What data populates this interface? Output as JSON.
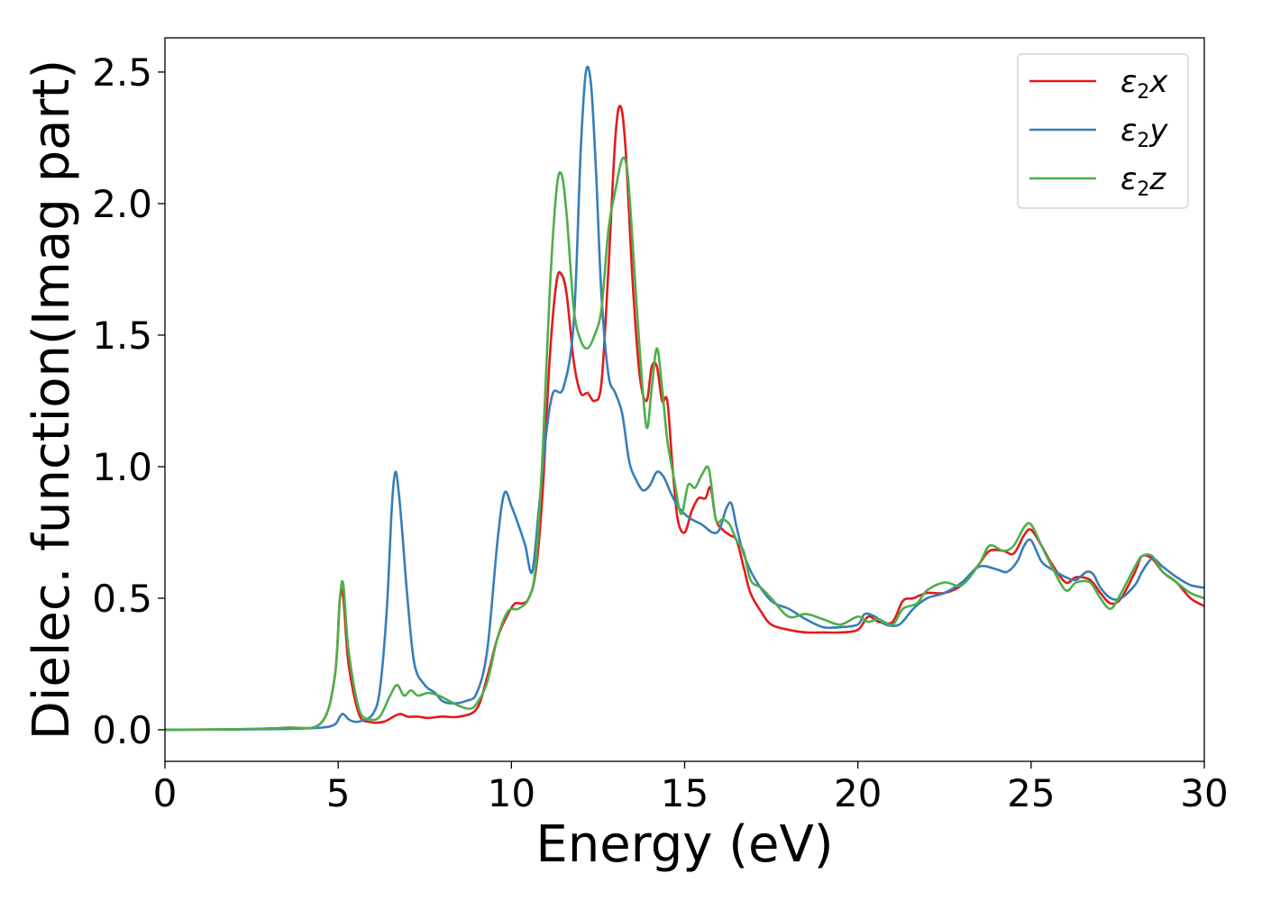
{
  "chart_data": {
    "type": "line",
    "title": "",
    "xlabel": "Energy (eV)",
    "ylabel": "Dielec. function(Imag part)",
    "xlim": [
      0,
      30
    ],
    "ylim": [
      -0.12,
      2.63
    ],
    "xticks": [
      0,
      5,
      10,
      15,
      20,
      25,
      30
    ],
    "xtick_labels": [
      "0",
      "5",
      "10",
      "15",
      "20",
      "25",
      "30"
    ],
    "yticks": [
      0.0,
      0.5,
      1.0,
      1.5,
      2.0,
      2.5
    ],
    "ytick_labels": [
      "0.0",
      "0.5",
      "1.0",
      "1.5",
      "2.0",
      "2.5"
    ],
    "grid": false,
    "legend_position": "top-right",
    "series": [
      {
        "name": "ε2x",
        "legend_main": "ε",
        "legend_sub": "2",
        "legend_suffix": "x",
        "color": "#e41a1c",
        "x": [
          0,
          2,
          3.5,
          4.5,
          4.9,
          5.05,
          5.15,
          5.3,
          5.6,
          5.9,
          6.3,
          6.6,
          6.8,
          7.0,
          7.3,
          7.6,
          8.0,
          8.5,
          9.0,
          9.3,
          9.6,
          9.9,
          10.1,
          10.3,
          10.5,
          10.7,
          10.9,
          11.1,
          11.3,
          11.45,
          11.6,
          11.8,
          12.0,
          12.2,
          12.4,
          12.6,
          12.8,
          13.0,
          13.15,
          13.3,
          13.5,
          13.7,
          13.9,
          14.05,
          14.2,
          14.35,
          14.5,
          14.65,
          14.8,
          15.0,
          15.2,
          15.4,
          15.6,
          15.75,
          15.9,
          16.1,
          16.3,
          16.5,
          16.7,
          16.9,
          17.2,
          17.5,
          18.0,
          18.5,
          19.0,
          19.5,
          20.0,
          20.3,
          20.6,
          21.0,
          21.3,
          21.6,
          22.0,
          22.5,
          23.0,
          23.5,
          23.8,
          24.2,
          24.5,
          24.8,
          25.0,
          25.3,
          25.6,
          26.0,
          26.3,
          26.7,
          27.0,
          27.3,
          27.6,
          28.0,
          28.2,
          28.5,
          28.8,
          29.2,
          29.6,
          30.0
        ],
        "y": [
          0.0,
          0.002,
          0.008,
          0.025,
          0.2,
          0.5,
          0.5,
          0.25,
          0.06,
          0.03,
          0.03,
          0.05,
          0.06,
          0.05,
          0.05,
          0.045,
          0.05,
          0.05,
          0.08,
          0.2,
          0.35,
          0.44,
          0.48,
          0.48,
          0.5,
          0.6,
          0.9,
          1.4,
          1.7,
          1.73,
          1.65,
          1.4,
          1.28,
          1.28,
          1.25,
          1.32,
          1.75,
          2.25,
          2.37,
          2.2,
          1.7,
          1.35,
          1.25,
          1.38,
          1.38,
          1.25,
          1.25,
          1.0,
          0.8,
          0.75,
          0.83,
          0.88,
          0.88,
          0.92,
          0.8,
          0.76,
          0.74,
          0.72,
          0.62,
          0.52,
          0.45,
          0.4,
          0.38,
          0.37,
          0.37,
          0.37,
          0.38,
          0.43,
          0.41,
          0.41,
          0.49,
          0.5,
          0.52,
          0.52,
          0.55,
          0.63,
          0.68,
          0.68,
          0.67,
          0.74,
          0.76,
          0.7,
          0.63,
          0.56,
          0.58,
          0.57,
          0.52,
          0.48,
          0.5,
          0.6,
          0.66,
          0.65,
          0.6,
          0.56,
          0.5,
          0.47
        ]
      },
      {
        "name": "ε2y",
        "legend_main": "ε",
        "legend_sub": "2",
        "legend_suffix": "y",
        "color": "#377eb8",
        "x": [
          0,
          2,
          3.5,
          4.5,
          4.9,
          5.05,
          5.15,
          5.3,
          5.5,
          5.7,
          6.0,
          6.2,
          6.4,
          6.55,
          6.65,
          6.75,
          6.85,
          7.0,
          7.2,
          7.5,
          7.8,
          8.0,
          8.3,
          8.7,
          9.0,
          9.3,
          9.6,
          9.8,
          10.0,
          10.2,
          10.4,
          10.6,
          10.8,
          11.0,
          11.2,
          11.5,
          11.8,
          12.0,
          12.15,
          12.3,
          12.45,
          12.6,
          12.8,
          13.0,
          13.2,
          13.4,
          13.6,
          13.8,
          14.0,
          14.2,
          14.4,
          14.6,
          14.8,
          15.0,
          15.2,
          15.5,
          15.8,
          16.0,
          16.2,
          16.35,
          16.5,
          16.7,
          17.0,
          17.5,
          18.0,
          18.5,
          19.0,
          19.5,
          20.0,
          20.2,
          20.5,
          20.8,
          21.2,
          21.6,
          22.0,
          22.5,
          23.0,
          23.5,
          24.0,
          24.3,
          24.6,
          24.8,
          25.0,
          25.3,
          25.6,
          26.0,
          26.3,
          26.6,
          26.8,
          27.0,
          27.3,
          27.6,
          28.0,
          28.2,
          28.5,
          28.8,
          29.2,
          29.6,
          30.0
        ],
        "y": [
          0.0,
          0.001,
          0.003,
          0.008,
          0.02,
          0.05,
          0.06,
          0.04,
          0.03,
          0.035,
          0.06,
          0.15,
          0.45,
          0.85,
          0.98,
          0.9,
          0.75,
          0.5,
          0.25,
          0.17,
          0.14,
          0.11,
          0.1,
          0.11,
          0.14,
          0.3,
          0.72,
          0.9,
          0.85,
          0.78,
          0.7,
          0.6,
          0.85,
          1.12,
          1.28,
          1.3,
          1.55,
          2.2,
          2.5,
          2.45,
          2.1,
          1.65,
          1.35,
          1.28,
          1.2,
          1.02,
          0.95,
          0.91,
          0.93,
          0.98,
          0.96,
          0.9,
          0.85,
          0.82,
          0.8,
          0.78,
          0.75,
          0.76,
          0.84,
          0.86,
          0.77,
          0.67,
          0.58,
          0.49,
          0.46,
          0.42,
          0.39,
          0.39,
          0.4,
          0.44,
          0.43,
          0.4,
          0.4,
          0.46,
          0.5,
          0.52,
          0.56,
          0.62,
          0.61,
          0.6,
          0.64,
          0.7,
          0.72,
          0.64,
          0.61,
          0.58,
          0.57,
          0.6,
          0.59,
          0.54,
          0.5,
          0.5,
          0.55,
          0.6,
          0.65,
          0.62,
          0.58,
          0.55,
          0.54
        ]
      },
      {
        "name": "ε2z",
        "legend_main": "ε",
        "legend_sub": "2",
        "legend_suffix": "z",
        "color": "#4daf4a",
        "x": [
          0,
          2,
          3.5,
          4.5,
          4.9,
          5.05,
          5.15,
          5.3,
          5.6,
          5.9,
          6.2,
          6.5,
          6.7,
          6.9,
          7.1,
          7.3,
          7.6,
          7.9,
          8.2,
          8.5,
          8.8,
          9.0,
          9.3,
          9.6,
          9.9,
          10.2,
          10.5,
          10.7,
          10.9,
          11.1,
          11.3,
          11.45,
          11.6,
          11.8,
          12.0,
          12.2,
          12.4,
          12.6,
          12.8,
          13.0,
          13.2,
          13.35,
          13.5,
          13.7,
          13.9,
          14.05,
          14.2,
          14.35,
          14.5,
          14.7,
          14.9,
          15.1,
          15.3,
          15.5,
          15.7,
          15.9,
          16.1,
          16.3,
          16.5,
          16.7,
          16.9,
          17.2,
          17.5,
          18.0,
          18.5,
          19.0,
          19.5,
          20.0,
          20.3,
          20.6,
          21.0,
          21.3,
          21.7,
          22.0,
          22.5,
          23.0,
          23.5,
          23.8,
          24.2,
          24.5,
          24.8,
          25.0,
          25.3,
          25.6,
          26.0,
          26.3,
          26.7,
          27.0,
          27.3,
          27.6,
          28.0,
          28.2,
          28.5,
          28.8,
          29.2,
          29.6,
          30.0
        ],
        "y": [
          0.0,
          0.002,
          0.008,
          0.025,
          0.2,
          0.5,
          0.55,
          0.3,
          0.08,
          0.04,
          0.05,
          0.13,
          0.17,
          0.13,
          0.15,
          0.13,
          0.14,
          0.13,
          0.11,
          0.09,
          0.08,
          0.1,
          0.18,
          0.35,
          0.45,
          0.46,
          0.5,
          0.62,
          1.05,
          1.65,
          2.05,
          2.11,
          1.95,
          1.6,
          1.48,
          1.45,
          1.5,
          1.6,
          1.9,
          2.05,
          2.17,
          2.12,
          1.85,
          1.45,
          1.15,
          1.3,
          1.45,
          1.3,
          1.1,
          0.95,
          0.82,
          0.93,
          0.92,
          0.97,
          0.99,
          0.8,
          0.8,
          0.78,
          0.72,
          0.68,
          0.57,
          0.54,
          0.5,
          0.43,
          0.44,
          0.42,
          0.4,
          0.43,
          0.41,
          0.42,
          0.4,
          0.46,
          0.48,
          0.53,
          0.56,
          0.55,
          0.63,
          0.7,
          0.68,
          0.7,
          0.77,
          0.78,
          0.7,
          0.62,
          0.53,
          0.56,
          0.56,
          0.5,
          0.46,
          0.52,
          0.62,
          0.66,
          0.66,
          0.6,
          0.56,
          0.52,
          0.5
        ]
      }
    ]
  }
}
